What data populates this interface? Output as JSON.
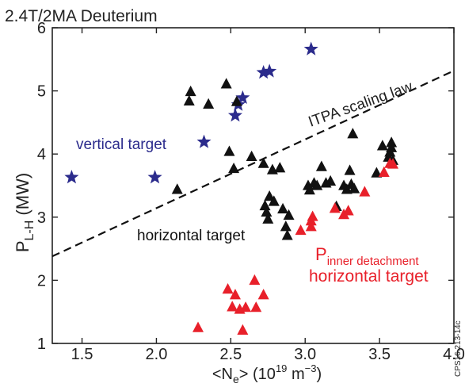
{
  "chart_data": {
    "type": "scatter",
    "title": "2.4T/2MA Deuterium",
    "xlabel": "<N",
    "xlabel_sub": "e",
    "xlabel_unit": "> (10",
    "xlabel_exp1": "19",
    "xlabel_mid": " m",
    "xlabel_exp2": "−3",
    "xlabel_end": ")",
    "ylabel": "P",
    "ylabel_sub": "L-H",
    "ylabel_unit": " (MW)",
    "xlim": [
      1.3,
      4.0
    ],
    "ylim": [
      1,
      6
    ],
    "xticks": [
      "1.5",
      "2.0",
      "2.5",
      "3.0",
      "3.5",
      "4.0"
    ],
    "xtick_values": [
      1.5,
      2.0,
      2.5,
      3.0,
      3.5,
      4.0
    ],
    "yticks": [
      "1",
      "2",
      "3",
      "4",
      "5",
      "6"
    ],
    "ytick_values": [
      1,
      2,
      3,
      4,
      5,
      6
    ],
    "grid": false,
    "colors": {
      "vertical": "#2b2b8c",
      "horizontal": "#111111",
      "detachment": "#e8202a",
      "axis": "#222222"
    },
    "series": [
      {
        "name": "vertical target",
        "marker": "star",
        "color": "#2b2b8c",
        "x": [
          1.43,
          1.99,
          2.32,
          2.53,
          2.55,
          2.58,
          2.72,
          2.76,
          3.04
        ],
        "y": [
          3.63,
          3.63,
          4.19,
          4.61,
          4.78,
          4.89,
          5.29,
          5.31,
          5.66
        ]
      },
      {
        "name": "horizontal target",
        "marker": "triangle",
        "color": "#111111",
        "x": [
          2.14,
          2.22,
          2.23,
          2.35,
          2.47,
          2.49,
          2.52,
          2.54,
          2.64,
          2.72,
          2.73,
          2.74,
          2.75,
          2.76,
          2.78,
          2.79,
          2.83,
          2.85,
          2.87,
          2.88,
          2.89,
          3.02,
          3.03,
          3.06,
          3.08,
          3.11,
          3.14,
          3.17,
          3.21,
          3.26,
          3.28,
          3.3,
          3.31,
          3.32,
          3.33,
          3.48,
          3.52,
          3.56,
          3.57,
          3.58,
          3.58,
          3.59
        ],
        "y": [
          3.44,
          4.84,
          4.99,
          4.79,
          5.11,
          4.04,
          3.77,
          4.83,
          3.96,
          3.85,
          3.18,
          3.08,
          2.97,
          3.33,
          3.75,
          3.25,
          3.78,
          3.13,
          2.85,
          2.71,
          3.03,
          3.5,
          3.43,
          3.54,
          3.5,
          3.8,
          3.54,
          3.57,
          3.17,
          3.5,
          3.44,
          3.74,
          3.52,
          4.32,
          3.45,
          3.7,
          4.13,
          3.95,
          4.03,
          4.1,
          4.18,
          3.9
        ]
      },
      {
        "name": "P_inner detachment horizontal target",
        "marker": "triangle",
        "color": "#e8202a",
        "x": [
          2.28,
          2.48,
          2.51,
          2.53,
          2.56,
          2.58,
          2.6,
          2.66,
          2.67,
          2.72,
          2.97,
          3.04,
          3.04,
          3.05,
          3.2,
          3.26,
          3.29,
          3.4,
          3.53,
          3.57,
          3.59
        ],
        "y": [
          1.25,
          1.86,
          1.58,
          1.77,
          1.54,
          1.21,
          1.57,
          2.0,
          1.57,
          1.77,
          2.79,
          2.85,
          2.94,
          3.01,
          3.14,
          3.04,
          3.1,
          3.4,
          3.71,
          3.85,
          3.84
        ]
      }
    ],
    "scaling_law": {
      "label": "ITPA scaling law",
      "x": [
        1.3,
        4.0
      ],
      "y": [
        2.38,
        5.32
      ],
      "style": "dashed"
    },
    "annotations": [
      {
        "text": "vertical target",
        "color": "#2b2b8c"
      },
      {
        "text": "horizontal target",
        "color": "#111111"
      },
      {
        "text": "P",
        "sub": "inner detachment",
        "color": "#e8202a"
      },
      {
        "text": "horizontal target",
        "color": "#e8202a"
      }
    ],
    "side_label": "CPS16.213-14c"
  }
}
